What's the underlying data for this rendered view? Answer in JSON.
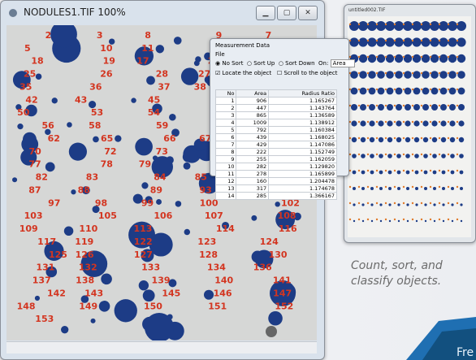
{
  "main_window": {
    "title": "NODULES1.TIF 100%",
    "labels": [
      "2",
      "3",
      "8",
      "9",
      "7",
      "5",
      "10",
      "11",
      "12",
      "15",
      "18",
      "19",
      "17",
      "21",
      "22",
      "25",
      "26",
      "28",
      "27",
      "31",
      "35",
      "36",
      "37",
      "38",
      "40",
      "42",
      "43",
      "45",
      "47",
      "48",
      "50",
      "53",
      "54",
      "52",
      "55",
      "56",
      "58",
      "59",
      "60",
      "61",
      "62",
      "65",
      "66",
      "67",
      "69",
      "70",
      "72",
      "73",
      "74",
      "76",
      "77",
      "78",
      "79",
      "80",
      "81",
      "82",
      "83",
      "84",
      "85",
      "86",
      "87",
      "88",
      "89",
      "93",
      "95",
      "97",
      "98",
      "99",
      "100",
      "102",
      "103",
      "105",
      "106",
      "107",
      "108",
      "109",
      "110",
      "113",
      "114",
      "116",
      "117",
      "119",
      "122",
      "123",
      "124",
      "125",
      "126",
      "127",
      "128",
      "130",
      "131",
      "132",
      "133",
      "134",
      "136",
      "137",
      "138",
      "139",
      "140",
      "141",
      "142",
      "143",
      "145",
      "146",
      "147",
      "148",
      "149",
      "150",
      "151",
      "152",
      "153"
    ]
  },
  "dialog": {
    "title": "Measurement Data",
    "menu": "File",
    "sort_options": [
      "No Sort",
      "Sort Up",
      "Sort Down"
    ],
    "on_label": "On:",
    "on_value": "Area",
    "checkboxes": [
      "Locate the object",
      "Scroll to the object"
    ],
    "table": {
      "headers": [
        "No",
        "Area",
        "Radius Ratio"
      ],
      "rows": [
        [
          "1",
          "906",
          "1.165267"
        ],
        [
          "2",
          "447",
          "1.143764"
        ],
        [
          "3",
          "865",
          "1.136589"
        ],
        [
          "4",
          "1009",
          "1.138912"
        ],
        [
          "5",
          "792",
          "1.160384"
        ],
        [
          "6",
          "439",
          "1.168025"
        ],
        [
          "7",
          "429",
          "1.147086"
        ],
        [
          "8",
          "222",
          "1.152749"
        ],
        [
          "9",
          "255",
          "1.162059"
        ],
        [
          "10",
          "282",
          "1.129820"
        ],
        [
          "11",
          "278",
          "1.165899"
        ],
        [
          "12",
          "160",
          "1.204478"
        ],
        [
          "13",
          "317",
          "1.174678"
        ],
        [
          "14",
          "285",
          "1.366167"
        ]
      ]
    }
  },
  "side_window": {
    "title": "untitled002.TIF"
  },
  "caption": [
    "Count, sort, and",
    "classify objects."
  ],
  "badge": "Fre"
}
